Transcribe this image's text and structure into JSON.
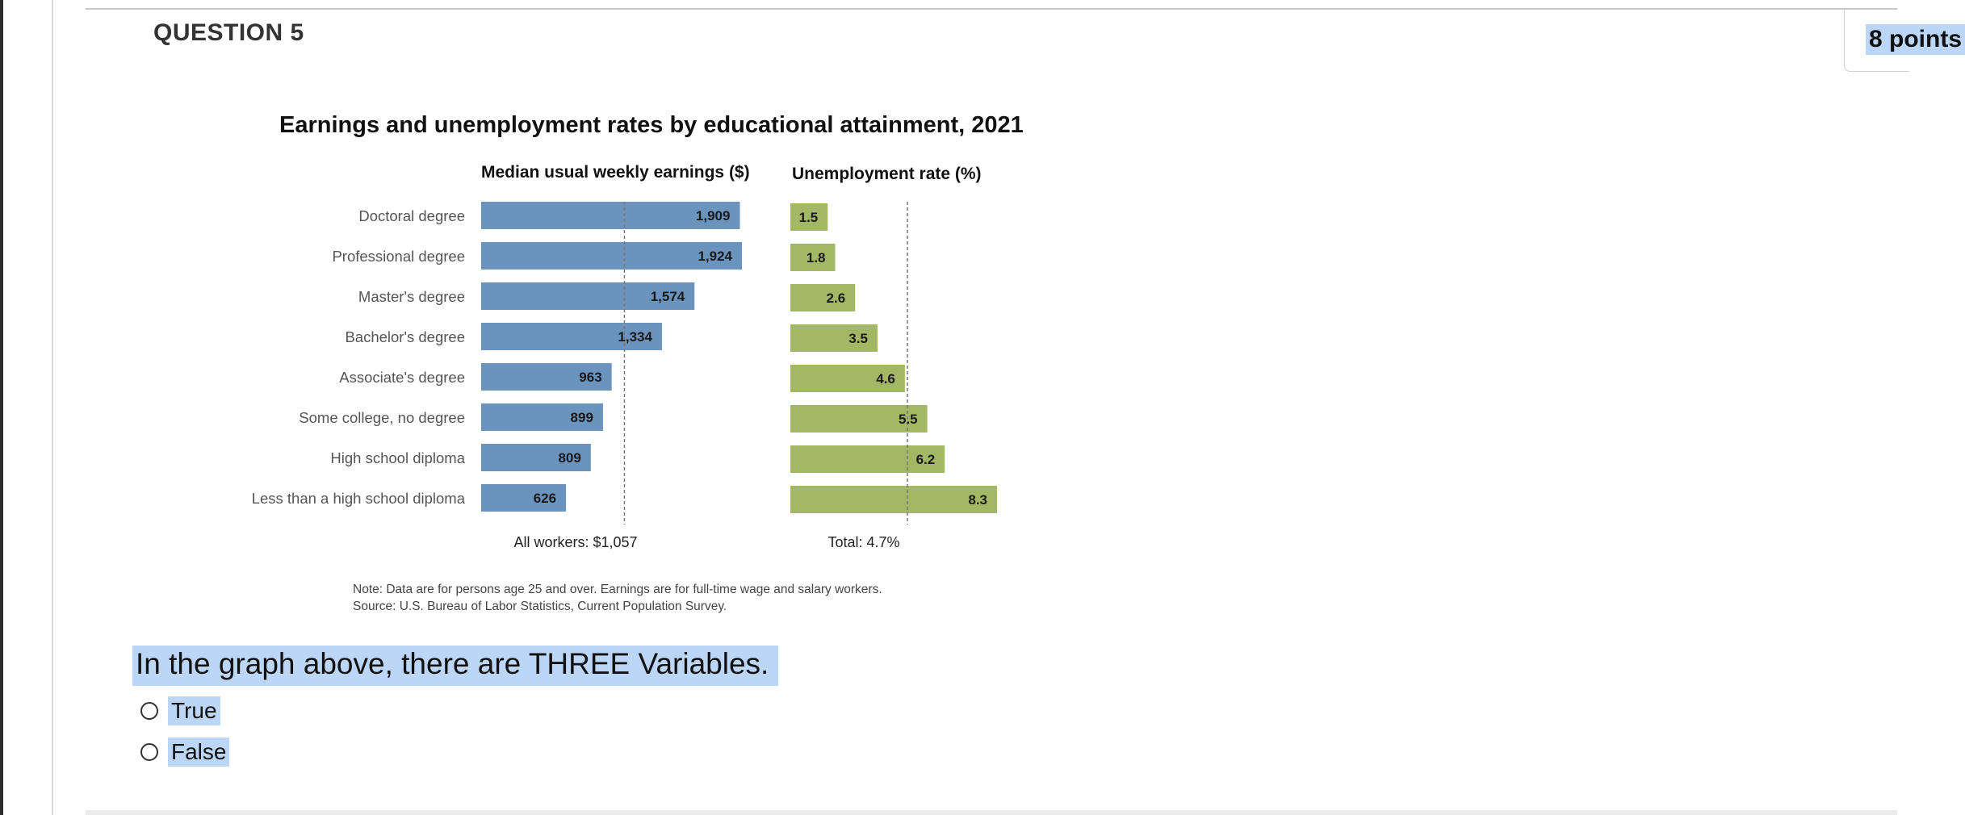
{
  "question": {
    "title": "QUESTION 5",
    "points": "8 points",
    "text": "In the graph above, there are THREE Variables.",
    "options": [
      {
        "label": "True"
      },
      {
        "label": "False"
      }
    ]
  },
  "chart_data": [
    {
      "type": "bar",
      "orientation": "horizontal",
      "title": "Earnings and unemployment rates by educational attainment, 2021",
      "panel_title": "Median usual weekly earnings ($)",
      "categories": [
        "Doctoral degree",
        "Professional degree",
        "Master's degree",
        "Bachelor's degree",
        "Associate's degree",
        "Some college, no degree",
        "High school diploma",
        "Less than a high school diploma"
      ],
      "values": [
        1909,
        1924,
        1574,
        1334,
        963,
        899,
        809,
        626
      ],
      "value_labels": [
        "1,909",
        "1,924",
        "1,574",
        "1,334",
        "963",
        "899",
        "809",
        "626"
      ],
      "reference": {
        "value": 1057,
        "label": "All workers: $1,057"
      },
      "xlim": [
        0,
        1924
      ],
      "color": "#6a93bd"
    },
    {
      "type": "bar",
      "orientation": "horizontal",
      "panel_title": "Unemployment rate (%)",
      "categories": [
        "Doctoral degree",
        "Professional degree",
        "Master's degree",
        "Bachelor's degree",
        "Associate's degree",
        "Some college, no degree",
        "High school diploma",
        "Less than a high school diploma"
      ],
      "values": [
        1.5,
        1.8,
        2.6,
        3.5,
        4.6,
        5.5,
        6.2,
        8.3
      ],
      "value_labels": [
        "1.5",
        "1.8",
        "2.6",
        "3.5",
        "4.6",
        "5.5",
        "6.2",
        "8.3"
      ],
      "reference": {
        "value": 4.7,
        "label": "Total: 4.7%"
      },
      "xlim": [
        0,
        8.3
      ],
      "color": "#a3b865"
    }
  ],
  "chart_notes": {
    "note": "Note: Data are for persons age 25 and over. Earnings are for full-time wage and salary workers.",
    "source": "Source: U.S. Bureau of Labor Statistics, Current Population Survey."
  },
  "colors": {
    "earnings_bar": "#6a93bd",
    "unemployment_bar": "#a3b865",
    "highlight": "#bcd6f7"
  }
}
